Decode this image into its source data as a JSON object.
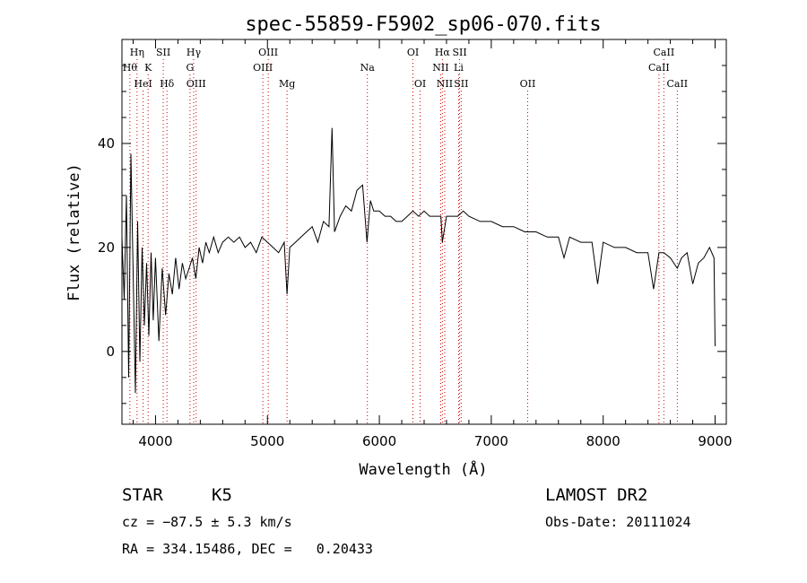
{
  "chart_data": {
    "type": "line",
    "title": "spec-55859-F5902_sp06-070.fits",
    "xlabel": "Wavelength (Å)",
    "ylabel": "Flux (relative)",
    "xlim": [
      3700,
      9100
    ],
    "ylim": [
      -14,
      60
    ],
    "xticks": [
      4000,
      5000,
      6000,
      7000,
      8000,
      9000
    ],
    "yticks": [
      0,
      20,
      40
    ],
    "grid": false,
    "series": [
      {
        "x": [
          3700,
          3720,
          3740,
          3760,
          3780,
          3800,
          3820,
          3840,
          3860,
          3880,
          3900,
          3920,
          3940,
          3960,
          3980,
          4000,
          4030,
          4060,
          4090,
          4120,
          4150,
          4180,
          4210,
          4240,
          4270,
          4300,
          4330,
          4360,
          4390,
          4420,
          4450,
          4480,
          4520,
          4560,
          4600,
          4650,
          4700,
          4750,
          4800,
          4850,
          4900,
          4950,
          5000,
          5050,
          5100,
          5150,
          5175,
          5200,
          5250,
          5300,
          5350,
          5400,
          5450,
          5500,
          5550,
          5577,
          5600,
          5650,
          5700,
          5750,
          5800,
          5850,
          5890,
          5920,
          5950,
          6000,
          6050,
          6100,
          6150,
          6200,
          6250,
          6300,
          6350,
          6400,
          6450,
          6500,
          6550,
          6563,
          6600,
          6650,
          6700,
          6750,
          6800,
          6900,
          7000,
          7100,
          7200,
          7300,
          7400,
          7500,
          7600,
          7650,
          7700,
          7800,
          7900,
          7950,
          8000,
          8100,
          8200,
          8300,
          8400,
          8450,
          8498,
          8542,
          8600,
          8662,
          8700,
          8750,
          8800,
          8850,
          8900,
          8950,
          8990,
          9000
        ],
        "y": [
          22,
          10,
          30,
          -5,
          38,
          15,
          -8,
          25,
          -2,
          20,
          5,
          17,
          3,
          19,
          6,
          18,
          2,
          16,
          7,
          15,
          11,
          18,
          12,
          17,
          14,
          16,
          18,
          14,
          20,
          17,
          21,
          19,
          22,
          19,
          21,
          22,
          21,
          22,
          20,
          21,
          19,
          22,
          21,
          20,
          19,
          21,
          11,
          20,
          21,
          22,
          23,
          24,
          21,
          25,
          24,
          43,
          23,
          26,
          28,
          27,
          31,
          32,
          21,
          29,
          27,
          27,
          26,
          26,
          25,
          25,
          26,
          27,
          26,
          27,
          26,
          26,
          26,
          21,
          26,
          26,
          26,
          27,
          26,
          25,
          25,
          24,
          24,
          23,
          23,
          22,
          22,
          18,
          22,
          21,
          21,
          13,
          21,
          20,
          20,
          19,
          19,
          12,
          19,
          19,
          18,
          16,
          18,
          19,
          13,
          17,
          18,
          20,
          18,
          1
        ]
      }
    ],
    "line_markers": [
      {
        "wavelength": 3835,
        "row": 1,
        "label": "Hη"
      },
      {
        "wavelength": 3771,
        "row": 2,
        "label": "Hθ"
      },
      {
        "wavelength": 3934,
        "row": 2,
        "label": "K"
      },
      {
        "wavelength": 3889,
        "row": 3,
        "label": "HeI"
      },
      {
        "wavelength": 4069,
        "row": 1,
        "label": "SII"
      },
      {
        "wavelength": 4102,
        "row": 3,
        "label": "Hδ"
      },
      {
        "wavelength": 4341,
        "row": 1,
        "label": "Hγ"
      },
      {
        "wavelength": 4308,
        "row": 2,
        "label": "G"
      },
      {
        "wavelength": 4363,
        "row": 3,
        "label": "OIII"
      },
      {
        "wavelength": 5007,
        "row": 1,
        "label": "OIII"
      },
      {
        "wavelength": 4959,
        "row": 2,
        "label": "OIII"
      },
      {
        "wavelength": 5175,
        "row": 3,
        "label": "Mg"
      },
      {
        "wavelength": 5893,
        "row": 2,
        "label": "Na"
      },
      {
        "wavelength": 6300,
        "row": 1,
        "label": "OI"
      },
      {
        "wavelength": 6364,
        "row": 3,
        "label": "OI"
      },
      {
        "wavelength": 6563,
        "row": 1,
        "label": "Hα"
      },
      {
        "wavelength": 6548,
        "row": 2,
        "label": "NII"
      },
      {
        "wavelength": 6584,
        "row": 3,
        "label": "NII"
      },
      {
        "wavelength": 6717,
        "row": 1,
        "label": "SII"
      },
      {
        "wavelength": 6708,
        "row": 2,
        "label": "Li"
      },
      {
        "wavelength": 6731,
        "row": 3,
        "label": "SII"
      },
      {
        "wavelength": 7325,
        "row": 3,
        "label": "OII"
      },
      {
        "wavelength": 8542,
        "row": 1,
        "label": "CaII"
      },
      {
        "wavelength": 8498,
        "row": 2,
        "label": "CaII"
      },
      {
        "wavelength": 8662,
        "row": 3,
        "label": "CaII"
      }
    ],
    "colors": {
      "spectrum": "#000000",
      "marker": "#cc0000",
      "axes": "#000000"
    }
  },
  "info": {
    "obj_class": "STAR",
    "subclass": "K5",
    "survey": "LAMOST DR2",
    "redshift": "cz = −87.5 ± 5.3 km/s",
    "obs_date": "Obs-Date: 20111024",
    "coords": "RA = 334.15486, DEC =   0.20433"
  }
}
